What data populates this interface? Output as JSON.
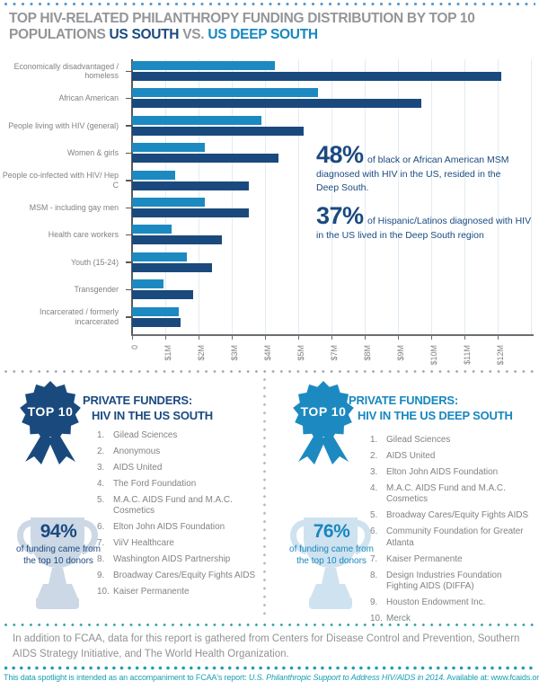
{
  "title": {
    "line1": "TOP HIV-RELATED PHILANTHROPY FUNDING DISTRIBUTION BY TOP 10",
    "line2_prefix": "POPULATIONS ",
    "region_a": "US SOUTH",
    "vs": " VS. ",
    "region_b": "US DEEP SOUTH"
  },
  "colors": {
    "navy": "#1a4a7d",
    "light_blue": "#1c8ac1",
    "gray_text": "#808285",
    "teal": "#189fb4",
    "pale_trophy_left": "#ccd8e5",
    "pale_trophy_right": "#cfe2ef"
  },
  "chart_data": {
    "type": "bar",
    "orientation": "horizontal",
    "title": "Top HIV-related philanthropy funding distribution by top 10 populations, US South vs. US Deep South",
    "units": "USD millions (as labeled on axis)",
    "categories": [
      "Economically disadvantaged / homeless",
      "African American",
      "People living with HIV (general)",
      "Women & girls",
      "People co-infected with HIV/ Hep C",
      "MSM - including gay men",
      "Health care workers",
      "Youth (15-24)",
      "Transgender",
      "Incarcerated / formerly incarcerated"
    ],
    "series": [
      {
        "name": "US Deep South",
        "color": "#1c8ac1",
        "values_m": [
          4.3,
          5.6,
          3.9,
          2.2,
          1.3,
          2.2,
          1.2,
          1.65,
          0.95,
          1.4
        ]
      },
      {
        "name": "US South",
        "color": "#1a4a7d",
        "values_m": [
          11.1,
          8.7,
          5.15,
          4.4,
          3.5,
          3.5,
          2.7,
          2.4,
          1.85,
          1.45
        ]
      }
    ],
    "x_tick_labels": [
      "0",
      "$1M",
      "$2M",
      "$3M",
      "$4M",
      "$5M",
      "$7M",
      "$8M",
      "$9M",
      "$10M",
      "$11M",
      "$12M"
    ],
    "xlim": [
      0,
      12.1
    ],
    "grid": true,
    "legend_position": "none (encoded in title colors)"
  },
  "callouts": [
    {
      "stat": "48%",
      "text": "of black or African American MSM diagnosed with HIV in the US, resided in the Deep South."
    },
    {
      "stat": "37%",
      "text": "of Hispanic/Latinos diagnosed with HIV in the US lived in the Deep South region"
    }
  ],
  "funders_south": {
    "badge": "TOP 10",
    "heading_line1": "PRIVATE FUNDERS:",
    "heading_line2": "HIV IN THE US SOUTH",
    "items": [
      "Gilead Sciences",
      "Anonymous",
      "AIDS United",
      "The Ford Foundation",
      "M.A.C. AIDS Fund and M.A.C. Cosmetics",
      "Elton John AIDS Foundation",
      "ViiV Healthcare",
      "Washington AIDS Partnership",
      "Broadway Cares/Equity Fights AIDS",
      "Kaiser Permanente"
    ],
    "stat": "94%",
    "stat_caption": "of funding came from the top 10 donors"
  },
  "funders_deep_south": {
    "badge": "TOP 10",
    "heading_line1": "PRIVATE FUNDERS:",
    "heading_line2": "HIV IN THE  US DEEP SOUTH",
    "items": [
      "Gilead Sciences",
      "AIDS United",
      "Elton John AIDS Foundation",
      "M.A.C. AIDS Fund and M.A.C. Cosmetics",
      "Broadway Cares/Equity Fights AIDS",
      "Community Foundation for Greater Atlanta",
      "Kaiser Permanente",
      "Design Industries Foundation Fighting AIDS (DIFFA)",
      "Houston Endowment Inc.",
      "Merck"
    ],
    "stat": "76%",
    "stat_caption": "of funding came from the top 10 donors"
  },
  "footer": {
    "sources": "In addition to FCAA, data for this report is gathered from Centers for Disease Control and Prevention, Southern AIDS Strategy Initiative, and The World Health Organization.",
    "note_prefix": "This data spotlight is intended as an accompaniment to FCAA's report: ",
    "note_title": "U.S. Philanthropic Support to Address HIV/AIDS in 2014.",
    "note_mid": " Available at:  ",
    "note_link": "www.fcaids.org/resourcetracking"
  }
}
